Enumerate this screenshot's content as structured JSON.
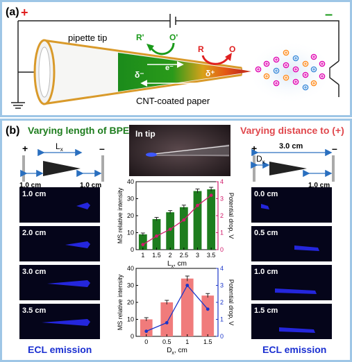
{
  "panel_a": {
    "label": "(a)",
    "plus": "+",
    "minus": "–",
    "pipette_tip": "pipette tip",
    "cnt_paper": "CNT-coated paper",
    "r_prime": "R'",
    "o_prime": "O'",
    "r": "R",
    "o": "O",
    "delta_minus": "δ⁻",
    "delta_plus": "δ⁺",
    "electron": "e⁻"
  },
  "panel_b": {
    "label": "(b)",
    "left_title": "Varying length of BPE",
    "right_title": "Varying distance to (+)",
    "in_tip": "In tip",
    "left_schem": {
      "plus": "+",
      "minus": "–",
      "lx": "L",
      "lx_sub": "x",
      "gap_left": "1.0 cm",
      "gap_right": "1.0 cm"
    },
    "right_schem": {
      "plus": "+",
      "minus": "–",
      "dx": "D",
      "dx_sub": "x",
      "span": "3.0 cm",
      "gap_right": "1.0 cm"
    },
    "left_images": [
      "1.0 cm",
      "2.0 cm",
      "3.0 cm",
      "3.5 cm"
    ],
    "right_images": [
      "0.0 cm",
      "0.5 cm",
      "1.0 cm",
      "1.5 cm"
    ],
    "ecl_left": "ECL emission",
    "ecl_right": "ECL emission"
  },
  "chart_data": [
    {
      "type": "bar",
      "categories": [
        "1",
        "1.5",
        "2",
        "2.5",
        "3",
        "3.5"
      ],
      "x": [
        1,
        1.5,
        2,
        2.5,
        3,
        3.5
      ],
      "xlabel_main": "L",
      "xlabel_sub": "x",
      "xlabel_unit": ", cm",
      "ylabel": "MS relative intensity",
      "y2label": "Potential drop, V",
      "ylim": [
        0,
        40
      ],
      "y2lim": [
        0,
        4
      ],
      "yticks": [
        0,
        10,
        20,
        30,
        40
      ],
      "y2ticks": [
        0,
        1,
        2,
        3,
        4
      ],
      "bars": [
        9,
        18,
        22,
        25,
        34.5,
        35.5
      ],
      "bar_errors": [
        0.8,
        1,
        1,
        1.2,
        1.2,
        1.2
      ],
      "line": [
        0.3,
        0.8,
        1.2,
        1.75,
        2.6,
        3.2
      ],
      "bar_color": "#1e7d1e",
      "line_color": "#d11a6a"
    },
    {
      "type": "bar",
      "categories": [
        "0",
        "0.5",
        "1",
        "1.5"
      ],
      "x": [
        0,
        0.5,
        1,
        1.5
      ],
      "xlabel_main": "D",
      "xlabel_sub": "x",
      "xlabel_unit": ", cm",
      "ylabel": "MS relative intensity",
      "y2label": "Potential drop, V",
      "ylim": [
        0,
        40
      ],
      "y2lim": [
        0,
        4
      ],
      "yticks": [
        0,
        10,
        20,
        30,
        40
      ],
      "y2ticks": [
        0,
        1,
        2,
        3,
        4
      ],
      "bars": [
        10,
        20,
        34,
        24
      ],
      "bar_errors": [
        1,
        1.2,
        1.5,
        1.2
      ],
      "line": [
        0.3,
        0.8,
        3.0,
        1.6
      ],
      "bar_color": "#f07b7b",
      "line_color": "#1a35c9"
    }
  ],
  "colors": {
    "border": "#9ec6e6",
    "green": "#1e7d1e",
    "red_title": "#e0474c",
    "blue_text": "#1a2fd1",
    "plus_red": "#e02020",
    "minus_green": "#1a9a1a"
  }
}
